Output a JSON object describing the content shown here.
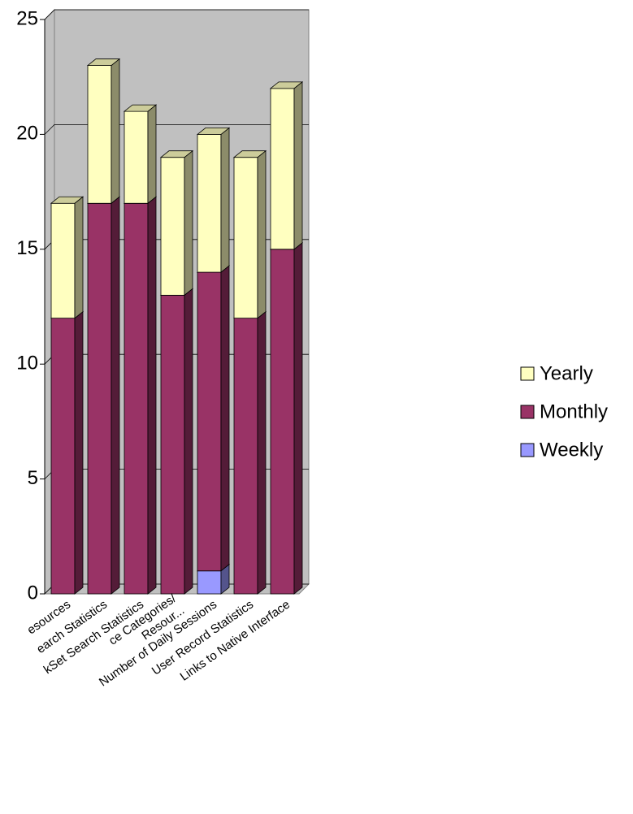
{
  "chart_data": {
    "type": "bar3d_stacked",
    "categories": [
      "esources",
      "earch Statistics",
      "kSet Search Statistics",
      [
        "ce Categories/",
        "Resour..."
      ],
      "Number of Daily Sessions",
      "User Record Statistics",
      "Links to Native Interface"
    ],
    "series": [
      {
        "name": "Weekly",
        "color": "#9999ff",
        "values": [
          0,
          0,
          0,
          0,
          1,
          0,
          0
        ]
      },
      {
        "name": "Monthly",
        "color": "#993366",
        "values": [
          12,
          17,
          17,
          13,
          13,
          12,
          15
        ]
      },
      {
        "name": "Yearly",
        "color": "#ffffc0",
        "values": [
          5,
          6,
          4,
          6,
          6,
          7,
          7
        ]
      }
    ],
    "ylim": [
      0,
      25
    ],
    "yticks": [
      0,
      5,
      10,
      15,
      20,
      25
    ],
    "grid": true,
    "legend": "right"
  }
}
